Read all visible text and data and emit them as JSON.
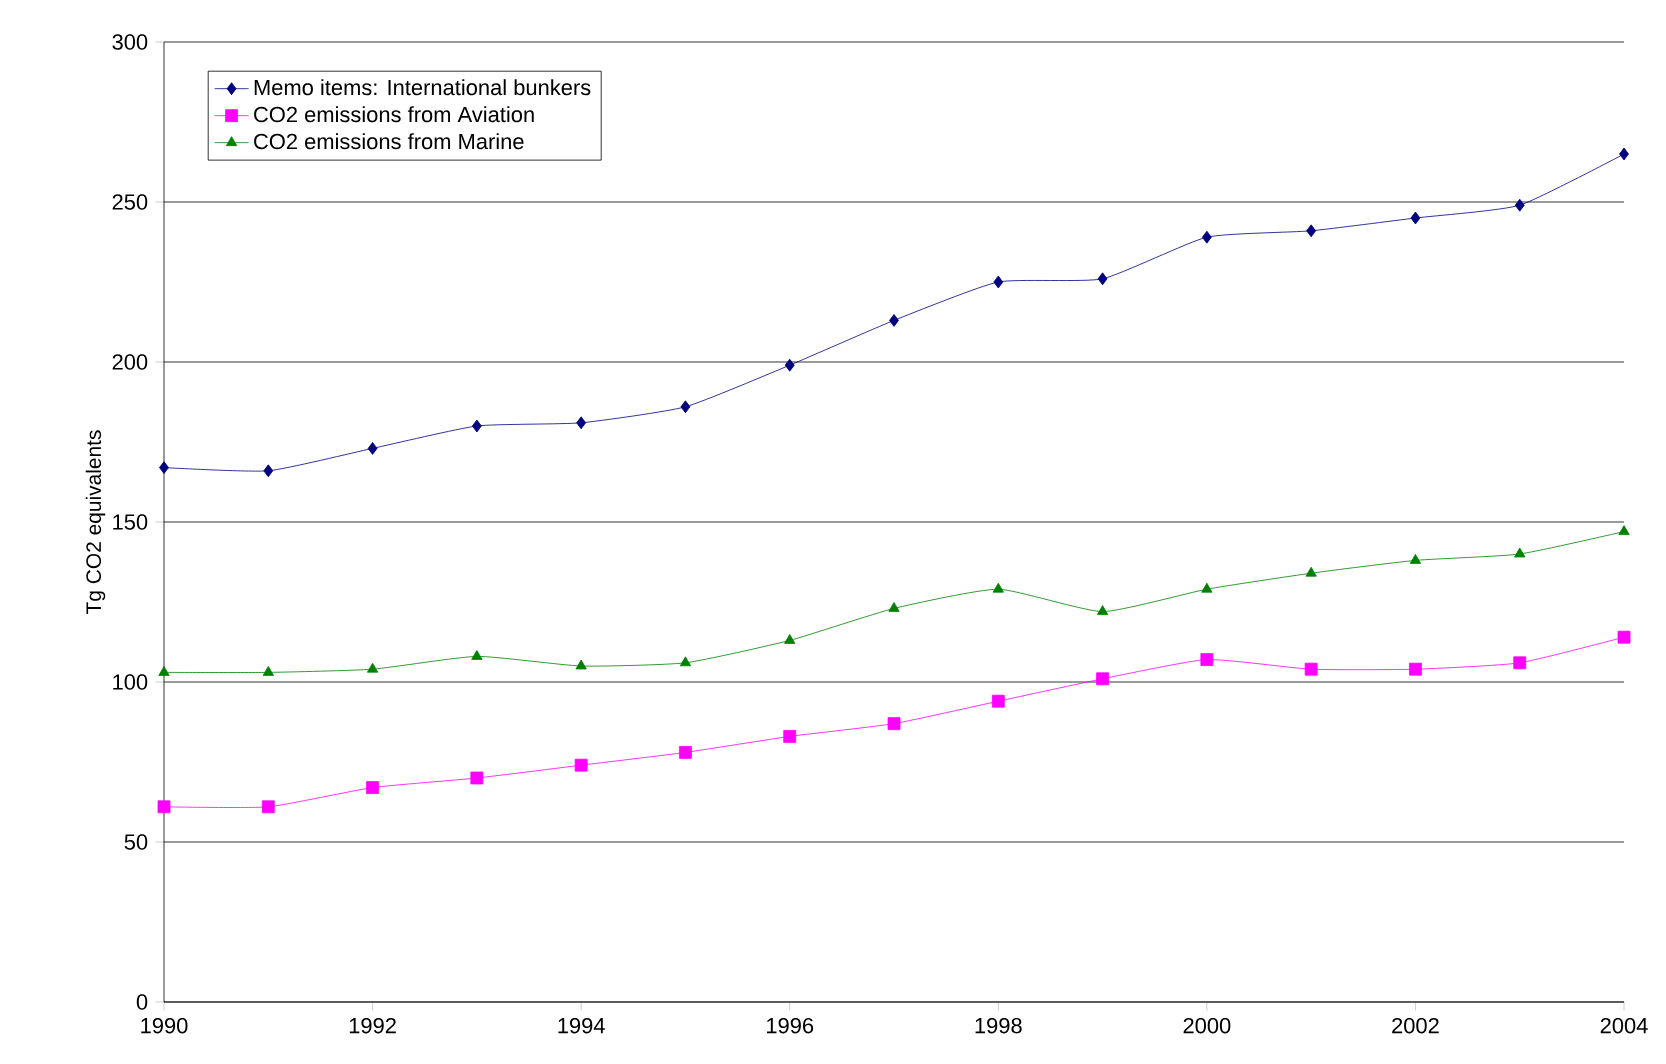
{
  "chart_data": {
    "type": "line",
    "ylabel": "Tg CO2 equivalents",
    "x": [
      1990,
      1991,
      1992,
      1993,
      1994,
      1995,
      1996,
      1997,
      1998,
      1999,
      2000,
      2001,
      2002,
      2003,
      2004
    ],
    "series": [
      {
        "name": "Memo items: International bunkers",
        "color": "#000080",
        "marker": "diamond",
        "values": [
          167,
          166,
          173,
          180,
          181,
          186,
          199,
          213,
          225,
          226,
          239,
          241,
          245,
          249,
          265
        ]
      },
      {
        "name": "CO2 emissions from Aviation",
        "color": "#ff00ff",
        "marker": "square",
        "values": [
          61,
          61,
          67,
          70,
          74,
          78,
          83,
          87,
          94,
          101,
          107,
          104,
          104,
          106,
          114
        ]
      },
      {
        "name": "CO2 emissions from Marine",
        "color": "#008000",
        "marker": "triangle",
        "values": [
          103,
          103,
          104,
          108,
          105,
          106,
          113,
          123,
          129,
          122,
          129,
          134,
          138,
          140,
          147
        ]
      }
    ],
    "xlim": [
      1990,
      2004
    ],
    "xticks": [
      1990,
      1992,
      1994,
      1996,
      1998,
      2000,
      2002,
      2004
    ],
    "ylim": [
      0,
      300
    ],
    "yticks": [
      0,
      50,
      100,
      150,
      200,
      250,
      300
    ],
    "grid": "y",
    "legend": "top left",
    "line_style": "solid"
  }
}
